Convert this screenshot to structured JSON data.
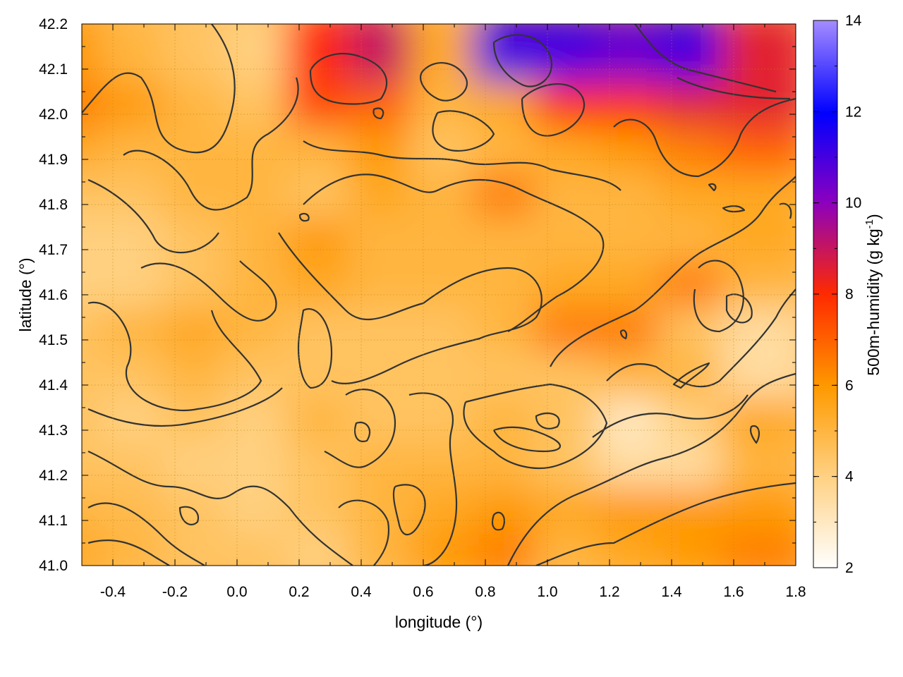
{
  "chart_data": {
    "type": "heatmap",
    "title": "",
    "xlabel": "longitude (°)",
    "ylabel": "latitude (°)",
    "colorbar_label": "500m-humidity (g kg⁻¹)",
    "colorbar_label_base": "500m-humidity (g kg",
    "colorbar_label_exp": "-1",
    "colorbar_label_close": ")",
    "xlim": [
      -0.5,
      1.8
    ],
    "ylim": [
      41.0,
      42.2
    ],
    "zlim": [
      2,
      14
    ],
    "x_ticks": [
      -0.4,
      -0.2,
      0.0,
      0.2,
      0.4,
      0.6,
      0.8,
      1.0,
      1.2,
      1.4,
      1.6,
      1.8
    ],
    "x_tick_labels": [
      "-0.4",
      "-0.2",
      "0.0",
      "0.2",
      "0.4",
      "0.6",
      "0.8",
      "1.0",
      "1.2",
      "1.4",
      "1.6",
      "1.8"
    ],
    "y_ticks": [
      41.0,
      41.1,
      41.2,
      41.3,
      41.4,
      41.5,
      41.6,
      41.7,
      41.8,
      41.9,
      42.0,
      42.1,
      42.2
    ],
    "y_tick_labels": [
      "41.0",
      "41.1",
      "41.2",
      "41.3",
      "41.4",
      "41.5",
      "41.6",
      "41.7",
      "41.8",
      "41.9",
      "42.0",
      "42.1",
      "42.2"
    ],
    "colorbar_ticks": [
      2,
      4,
      6,
      8,
      10,
      12,
      14
    ],
    "colorbar_tick_labels": [
      "2",
      "4",
      "6",
      "8",
      "10",
      "12",
      "14"
    ],
    "colormap": [
      "#ffffff",
      "#ffd080",
      "#ff9a00",
      "#ff2a00",
      "#8a00c0",
      "#0000ff",
      "#9c7cff"
    ],
    "grid": true,
    "contours": true,
    "contour_color": "#333333",
    "x_grid": [
      -0.5,
      -0.3,
      -0.1,
      0.1,
      0.3,
      0.5,
      0.7,
      0.9,
      1.1,
      1.3,
      1.5,
      1.7
    ],
    "y_grid": [
      41.05,
      41.15,
      41.25,
      41.35,
      41.45,
      41.55,
      41.65,
      41.75,
      41.85,
      41.95,
      42.05,
      42.15
    ],
    "z": [
      [
        5.5,
        5.0,
        4.5,
        4.5,
        4.0,
        5.0,
        6.0,
        6.5,
        5.0,
        5.5,
        6.0,
        6.5
      ],
      [
        5.0,
        4.8,
        4.5,
        4.0,
        4.5,
        5.0,
        5.5,
        6.0,
        5.5,
        6.0,
        6.0,
        6.0
      ],
      [
        4.5,
        4.5,
        4.0,
        4.0,
        4.5,
        5.0,
        5.0,
        5.0,
        4.5,
        3.5,
        3.5,
        5.0
      ],
      [
        4.5,
        4.0,
        4.5,
        4.0,
        5.0,
        4.5,
        4.5,
        5.0,
        4.5,
        3.0,
        4.0,
        5.5
      ],
      [
        4.5,
        4.5,
        5.0,
        4.5,
        4.5,
        4.5,
        4.5,
        4.5,
        4.5,
        5.0,
        5.0,
        3.5
      ],
      [
        4.5,
        5.0,
        5.5,
        5.0,
        4.5,
        4.5,
        4.5,
        5.0,
        6.5,
        6.5,
        4.5,
        3.5
      ],
      [
        4.0,
        4.0,
        4.5,
        5.0,
        5.5,
        5.0,
        5.0,
        5.0,
        5.5,
        5.5,
        6.5,
        5.0
      ],
      [
        4.0,
        4.0,
        4.5,
        5.0,
        6.0,
        5.0,
        5.0,
        5.0,
        5.0,
        5.0,
        5.0,
        5.5
      ],
      [
        4.5,
        4.5,
        5.0,
        5.0,
        4.5,
        5.5,
        5.0,
        6.5,
        5.0,
        5.0,
        5.5,
        5.5
      ],
      [
        5.5,
        5.0,
        5.0,
        5.0,
        5.0,
        6.0,
        4.5,
        5.0,
        5.5,
        6.0,
        6.5,
        7.0
      ],
      [
        6.5,
        6.0,
        5.0,
        4.5,
        7.5,
        7.0,
        5.0,
        5.5,
        8.0,
        8.0,
        8.5,
        8.5
      ],
      [
        6.0,
        5.0,
        4.5,
        4.0,
        8.0,
        9.0,
        5.5,
        11.0,
        11.0,
        10.5,
        11.0,
        8.5
      ]
    ]
  }
}
